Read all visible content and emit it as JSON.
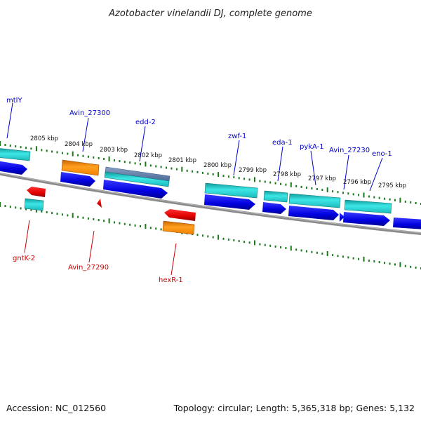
{
  "title": "Azotobacter vinelandii DJ, complete genome",
  "footer": {
    "accession": "Accession: NC_012560",
    "summary": "Topology: circular; Length: 5,365,318 bp; Genes: 5,132"
  },
  "colors": {
    "forward_cds": "#0000ee",
    "rna_teal": "#1ec8c8",
    "rna_orange": "#ff8c00",
    "reverse_cds": "#ee0000",
    "tick_green": "#1a7a1a",
    "backbone": "#808080"
  },
  "ruler": {
    "labels": [
      "2805 kbp",
      "2804 kbp",
      "2803 kbp",
      "2802 kbp",
      "2801 kbp",
      "2800 kbp",
      "2799 kbp",
      "2798 kbp",
      "2797 kbp",
      "2796 kbp",
      "2795 kbp"
    ]
  },
  "forward_labels": [
    "mtlY",
    "Avin_27300",
    "edd-2",
    "zwf-1",
    "eda-1",
    "pykA-1",
    "Avin_27230",
    "eno-1"
  ],
  "reverse_labels": [
    "gntK-2",
    "Avin_27290",
    "hexR-1"
  ]
}
